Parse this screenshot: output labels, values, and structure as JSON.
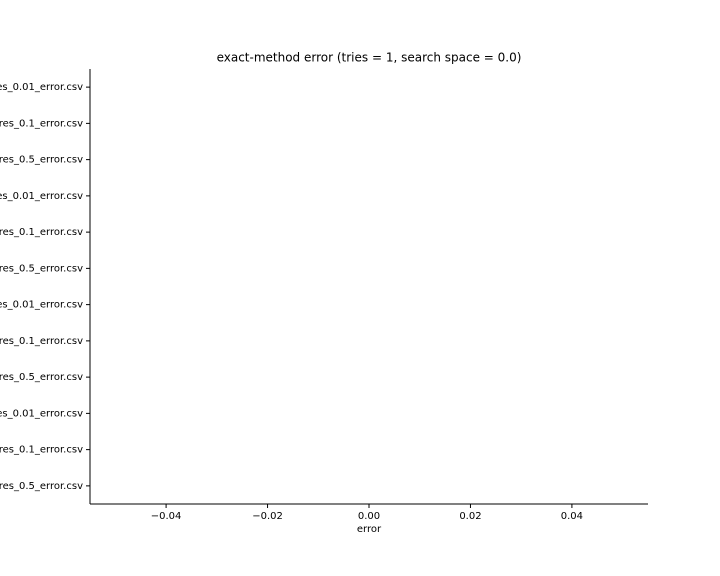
{
  "chart_data": {
    "type": "bar",
    "orientation": "horizontal",
    "title": "exact-method error (tries = 1, search space = 0.0)",
    "xlabel": "error",
    "categories": [
      "es_0.01_error.csv",
      "res_0.1_error.csv",
      "res_0.5_error.csv",
      "es_0.01_error.csv",
      "res_0.1_error.csv",
      "res_0.5_error.csv",
      "es_0.01_error.csv",
      "res_0.1_error.csv",
      "res_0.5_error.csv",
      "es_0.01_error.csv",
      "res_0.1_error.csv",
      "res_0.5_error.csv"
    ],
    "values": [
      null,
      null,
      null,
      null,
      null,
      null,
      null,
      null,
      null,
      null,
      null,
      null
    ],
    "color": "#1f77b4",
    "xlim": [
      -0.055,
      0.055
    ],
    "xticks": [
      {
        "value": -0.04,
        "label": "−0.04"
      },
      {
        "value": -0.02,
        "label": "−0.02"
      },
      {
        "value": 0,
        "label": "0.00"
      },
      0.02,
      0.04
    ]
  }
}
